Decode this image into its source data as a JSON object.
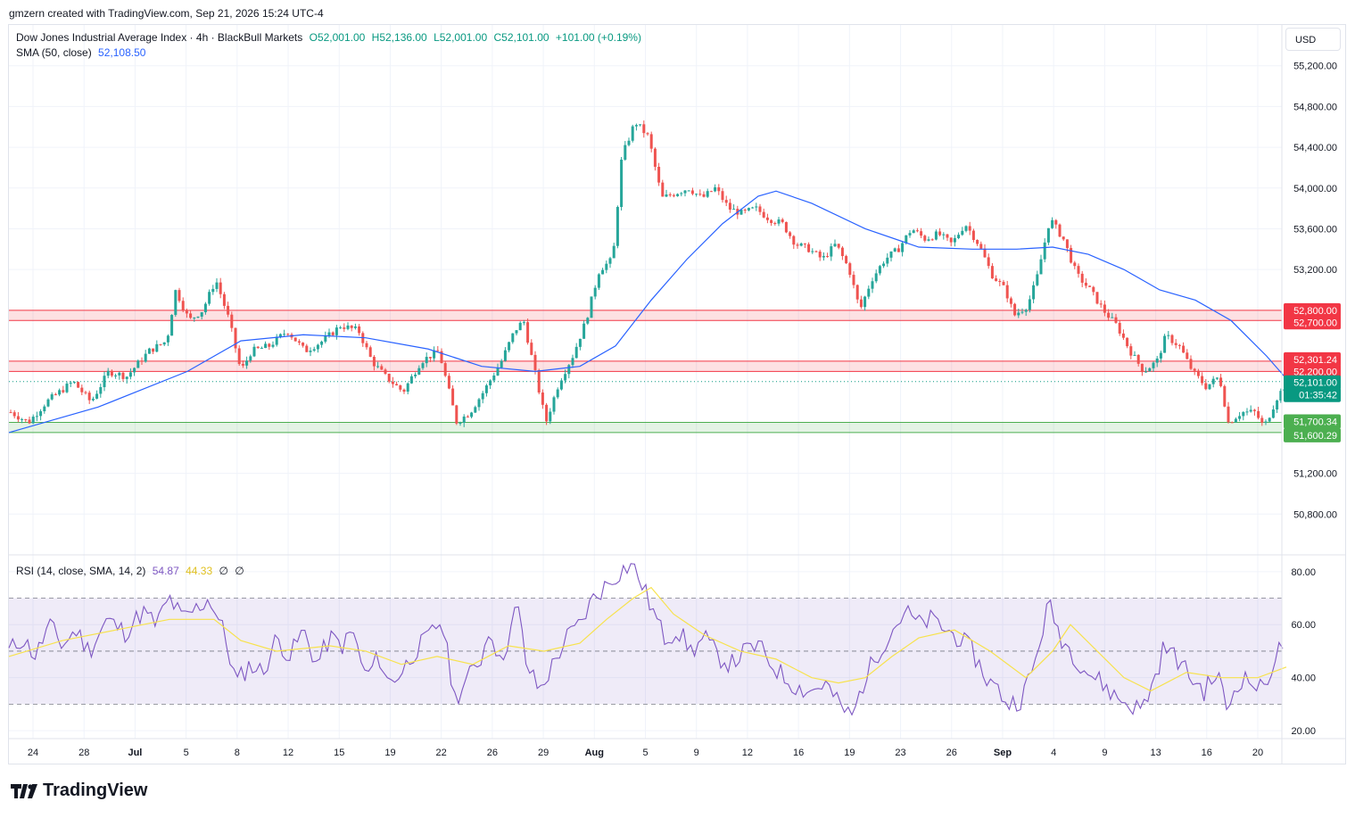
{
  "header": {
    "attribution": "gmzern created with TradingView.com, Sep 21, 2026 15:24 UTC-4"
  },
  "legend": {
    "symbol": "Dow Jones Industrial Average Index · 4h · BlackBull Markets",
    "o": "O52,001.00",
    "h": "H52,136.00",
    "l": "L52,001.00",
    "c": "C52,101.00",
    "change": "+101.00 (+0.19%)",
    "sma_label": "SMA (50, close)",
    "sma_value": "52,108.50"
  },
  "currency": "USD",
  "rsi_legend": {
    "label": "RSI (14, close, SMA, 14, 2)",
    "value": "54.87",
    "sma_value": "44.33",
    "extra1": "∅",
    "extra2": "∅"
  },
  "brand": "TradingView",
  "colors": {
    "up": "#26a69a",
    "down": "#ef5350",
    "sma": "#2962ff",
    "rsi": "#7e57c2",
    "rsi_sma": "#f7e24d",
    "resistance": "#f23645",
    "support": "#4caf50",
    "accent": "#089981"
  },
  "chart_data": [
    {
      "type": "candlestick",
      "title": "Dow Jones Industrial Average Index · 4h · BlackBull Markets",
      "ylim": [
        50400,
        55600
      ],
      "y_ticks": [
        "55,200.00",
        "54,800.00",
        "54,400.00",
        "54,000.00",
        "53,600.00",
        "53,200.00",
        "51,200.00",
        "50,800.00"
      ],
      "x_ticks": [
        "24",
        "28",
        "Jul",
        "5",
        "8",
        "12",
        "15",
        "19",
        "22",
        "26",
        "29",
        "Aug",
        "5",
        "9",
        "12",
        "16",
        "19",
        "23",
        "26",
        "Sep",
        "4",
        "9",
        "13",
        "16",
        "20"
      ],
      "price_labels": [
        "52,800.00",
        "52,700.00",
        "52,301.24",
        "52,200.00",
        "52,101.00",
        "01:35:42",
        "51,700.34",
        "51,600.29"
      ],
      "zones": [
        {
          "name": "resistance",
          "from": 52700,
          "to": 52800
        },
        {
          "name": "resistance",
          "from": 52200,
          "to": 52301.24
        },
        {
          "name": "support",
          "from": 51600.29,
          "to": 51700.34
        }
      ],
      "last_price": 52101,
      "close_path": [
        [
          0,
          51800
        ],
        [
          20,
          51700
        ],
        [
          40,
          51900
        ],
        [
          55,
          52000
        ],
        [
          70,
          52100
        ],
        [
          90,
          51900
        ],
        [
          110,
          52200
        ],
        [
          130,
          52150
        ],
        [
          155,
          52400
        ],
        [
          175,
          52500
        ],
        [
          185,
          53000
        ],
        [
          200,
          52700
        ],
        [
          215,
          52800
        ],
        [
          230,
          53100
        ],
        [
          245,
          52700
        ],
        [
          258,
          52200
        ],
        [
          270,
          52400
        ],
        [
          290,
          52450
        ],
        [
          310,
          52600
        ],
        [
          330,
          52400
        ],
        [
          350,
          52500
        ],
        [
          370,
          52650
        ],
        [
          390,
          52600
        ],
        [
          405,
          52300
        ],
        [
          420,
          52150
        ],
        [
          440,
          52000
        ],
        [
          460,
          52300
        ],
        [
          480,
          52400
        ],
        [
          500,
          51700
        ],
        [
          515,
          51800
        ],
        [
          530,
          52000
        ],
        [
          550,
          52300
        ],
        [
          565,
          52600
        ],
        [
          575,
          52700
        ],
        [
          590,
          52100
        ],
        [
          600,
          51700
        ],
        [
          615,
          52100
        ],
        [
          630,
          52350
        ],
        [
          645,
          52700
        ],
        [
          660,
          53200
        ],
        [
          675,
          53300
        ],
        [
          685,
          54300
        ],
        [
          700,
          54650
        ],
        [
          715,
          54500
        ],
        [
          730,
          53900
        ],
        [
          745,
          53950
        ],
        [
          760,
          54000
        ],
        [
          775,
          53900
        ],
        [
          790,
          54000
        ],
        [
          805,
          53800
        ],
        [
          820,
          53750
        ],
        [
          835,
          53800
        ],
        [
          850,
          53700
        ],
        [
          865,
          53650
        ],
        [
          880,
          53450
        ],
        [
          895,
          53400
        ],
        [
          910,
          53300
        ],
        [
          925,
          53450
        ],
        [
          940,
          53200
        ],
        [
          952,
          52800
        ],
        [
          965,
          53100
        ],
        [
          980,
          53300
        ],
        [
          995,
          53400
        ],
        [
          1010,
          53600
        ],
        [
          1025,
          53500
        ],
        [
          1040,
          53550
        ],
        [
          1055,
          53450
        ],
        [
          1070,
          53650
        ],
        [
          1085,
          53450
        ],
        [
          1100,
          53150
        ],
        [
          1115,
          53000
        ],
        [
          1125,
          52750
        ],
        [
          1140,
          52850
        ],
        [
          1150,
          53100
        ],
        [
          1165,
          53700
        ],
        [
          1180,
          53500
        ],
        [
          1195,
          53150
        ],
        [
          1210,
          53000
        ],
        [
          1225,
          52800
        ],
        [
          1240,
          52650
        ],
        [
          1255,
          52400
        ],
        [
          1270,
          52200
        ],
        [
          1285,
          52300
        ],
        [
          1295,
          52550
        ],
        [
          1310,
          52450
        ],
        [
          1325,
          52200
        ],
        [
          1340,
          52050
        ],
        [
          1355,
          52150
        ],
        [
          1365,
          51700
        ],
        [
          1380,
          51800
        ],
        [
          1395,
          51800
        ],
        [
          1405,
          51650
        ],
        [
          1420,
          51950
        ],
        [
          1432,
          52101
        ]
      ],
      "sma_path": [
        [
          0,
          51600
        ],
        [
          100,
          51850
        ],
        [
          200,
          52200
        ],
        [
          260,
          52500
        ],
        [
          330,
          52560
        ],
        [
          400,
          52530
        ],
        [
          470,
          52420
        ],
        [
          530,
          52250
        ],
        [
          590,
          52200
        ],
        [
          640,
          52250
        ],
        [
          680,
          52450
        ],
        [
          720,
          52900
        ],
        [
          760,
          53300
        ],
        [
          800,
          53650
        ],
        [
          840,
          53920
        ],
        [
          860,
          53970
        ],
        [
          900,
          53850
        ],
        [
          960,
          53600
        ],
        [
          1020,
          53420
        ],
        [
          1080,
          53400
        ],
        [
          1130,
          53400
        ],
        [
          1170,
          53420
        ],
        [
          1210,
          53350
        ],
        [
          1250,
          53200
        ],
        [
          1290,
          53000
        ],
        [
          1330,
          52900
        ],
        [
          1370,
          52700
        ],
        [
          1410,
          52350
        ],
        [
          1430,
          52150
        ]
      ]
    },
    {
      "type": "line",
      "title": "RSI (14, close, SMA, 14, 2)",
      "ylim": [
        17,
        86
      ],
      "y_ticks": [
        "80.00",
        "60.00",
        "40.00",
        "20.00"
      ],
      "bands": [
        30,
        50,
        70
      ],
      "rsi_path": [
        [
          0,
          50
        ],
        [
          15,
          55
        ],
        [
          30,
          48
        ],
        [
          45,
          60
        ],
        [
          60,
          52
        ],
        [
          75,
          58
        ],
        [
          90,
          50
        ],
        [
          110,
          62
        ],
        [
          130,
          57
        ],
        [
          150,
          65
        ],
        [
          165,
          60
        ],
        [
          180,
          70
        ],
        [
          195,
          62
        ],
        [
          210,
          66
        ],
        [
          225,
          70
        ],
        [
          240,
          58
        ],
        [
          255,
          38
        ],
        [
          270,
          45
        ],
        [
          285,
          42
        ],
        [
          300,
          55
        ],
        [
          315,
          48
        ],
        [
          330,
          58
        ],
        [
          345,
          45
        ],
        [
          360,
          55
        ],
        [
          375,
          52
        ],
        [
          385,
          58
        ],
        [
          400,
          40
        ],
        [
          415,
          48
        ],
        [
          425,
          38
        ],
        [
          440,
          42
        ],
        [
          455,
          50
        ],
        [
          470,
          55
        ],
        [
          485,
          62
        ],
        [
          500,
          32
        ],
        [
          515,
          40
        ],
        [
          530,
          48
        ],
        [
          540,
          60
        ],
        [
          550,
          45
        ],
        [
          560,
          55
        ],
        [
          570,
          68
        ],
        [
          580,
          45
        ],
        [
          595,
          35
        ],
        [
          610,
          45
        ],
        [
          625,
          55
        ],
        [
          640,
          60
        ],
        [
          655,
          70
        ],
        [
          670,
          75
        ],
        [
          685,
          80
        ],
        [
          698,
          83
        ],
        [
          710,
          75
        ],
        [
          722,
          65
        ],
        [
          735,
          55
        ],
        [
          750,
          58
        ],
        [
          765,
          50
        ],
        [
          780,
          55
        ],
        [
          795,
          48
        ],
        [
          810,
          45
        ],
        [
          825,
          50
        ],
        [
          840,
          52
        ],
        [
          855,
          45
        ],
        [
          870,
          40
        ],
        [
          885,
          36
        ],
        [
          900,
          35
        ],
        [
          915,
          38
        ],
        [
          930,
          30
        ],
        [
          945,
          25
        ],
        [
          960,
          40
        ],
        [
          975,
          50
        ],
        [
          990,
          58
        ],
        [
          1005,
          65
        ],
        [
          1020,
          60
        ],
        [
          1035,
          62
        ],
        [
          1050,
          58
        ],
        [
          1065,
          55
        ],
        [
          1080,
          50
        ],
        [
          1095,
          40
        ],
        [
          1110,
          35
        ],
        [
          1120,
          30
        ],
        [
          1135,
          32
        ],
        [
          1150,
          45
        ],
        [
          1165,
          68
        ],
        [
          1180,
          55
        ],
        [
          1195,
          48
        ],
        [
          1210,
          42
        ],
        [
          1225,
          38
        ],
        [
          1240,
          33
        ],
        [
          1255,
          30
        ],
        [
          1270,
          28
        ],
        [
          1285,
          40
        ],
        [
          1295,
          52
        ],
        [
          1310,
          47
        ],
        [
          1325,
          40
        ],
        [
          1340,
          35
        ],
        [
          1355,
          42
        ],
        [
          1365,
          28
        ],
        [
          1380,
          40
        ],
        [
          1395,
          38
        ],
        [
          1405,
          35
        ],
        [
          1420,
          48
        ],
        [
          1432,
          55
        ]
      ],
      "rsi_sma_path": [
        [
          0,
          48
        ],
        [
          60,
          54
        ],
        [
          120,
          58
        ],
        [
          180,
          62
        ],
        [
          230,
          62
        ],
        [
          260,
          54
        ],
        [
          300,
          50
        ],
        [
          360,
          52
        ],
        [
          400,
          50
        ],
        [
          440,
          45
        ],
        [
          480,
          48
        ],
        [
          520,
          45
        ],
        [
          560,
          52
        ],
        [
          600,
          50
        ],
        [
          640,
          53
        ],
        [
          670,
          62
        ],
        [
          700,
          70
        ],
        [
          720,
          74
        ],
        [
          745,
          64
        ],
        [
          780,
          56
        ],
        [
          820,
          50
        ],
        [
          860,
          47
        ],
        [
          900,
          40
        ],
        [
          930,
          38
        ],
        [
          960,
          40
        ],
        [
          990,
          48
        ],
        [
          1020,
          55
        ],
        [
          1060,
          58
        ],
        [
          1100,
          50
        ],
        [
          1140,
          40
        ],
        [
          1170,
          50
        ],
        [
          1190,
          60
        ],
        [
          1220,
          50
        ],
        [
          1250,
          40
        ],
        [
          1280,
          35
        ],
        [
          1320,
          42
        ],
        [
          1360,
          40
        ],
        [
          1400,
          40
        ],
        [
          1432,
          44
        ]
      ]
    }
  ]
}
